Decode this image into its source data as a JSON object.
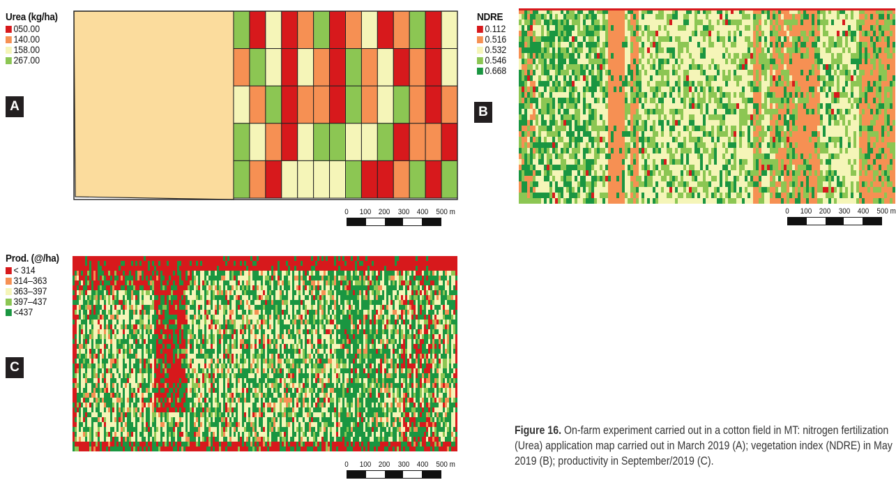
{
  "panels": {
    "a": {
      "tag": "A",
      "legend": {
        "title": "Urea (kg/ha)",
        "items": [
          {
            "label": "050.00",
            "color": "#d7191c"
          },
          {
            "label": "140.00",
            "color": "#f69053"
          },
          {
            "label": "158.00",
            "color": "#f5f5b8"
          },
          {
            "label": "267.00",
            "color": "#8cc653"
          }
        ]
      },
      "unfertilized_color": "#fbdc9d",
      "grid": {
        "rows": 5,
        "cols": 14,
        "cells": [
          [
            3,
            0,
            2,
            0,
            1,
            3,
            0,
            1,
            2,
            0,
            1,
            3,
            0,
            2
          ],
          [
            1,
            3,
            2,
            0,
            2,
            1,
            0,
            3,
            1,
            2,
            0,
            1,
            0,
            2
          ],
          [
            2,
            1,
            3,
            0,
            1,
            1,
            0,
            3,
            1,
            2,
            3,
            1,
            0,
            1
          ],
          [
            3,
            2,
            1,
            0,
            2,
            3,
            3,
            2,
            2,
            3,
            0,
            1,
            1,
            0
          ],
          [
            3,
            1,
            0,
            2,
            2,
            2,
            2,
            3,
            0,
            0,
            1,
            3,
            0,
            3
          ]
        ]
      },
      "scale": {
        "labels": [
          "0",
          "100",
          "200",
          "300",
          "400",
          "500 m"
        ]
      }
    },
    "b": {
      "tag": "B",
      "legend": {
        "title": "NDRE",
        "items": [
          {
            "label": "0.112",
            "color": "#d7191c"
          },
          {
            "label": "0.516",
            "color": "#f69053"
          },
          {
            "label": "0.532",
            "color": "#f5f5b8"
          },
          {
            "label": "0.546",
            "color": "#8cc653"
          },
          {
            "label": "0.668",
            "color": "#1a9641"
          }
        ]
      },
      "scale": {
        "labels": [
          "0",
          "100",
          "200",
          "300",
          "400",
          "500 m"
        ]
      }
    },
    "c": {
      "tag": "C",
      "legend": {
        "title": "Prod. (@/ha)",
        "items": [
          {
            "label": "< 314",
            "color": "#d7191c"
          },
          {
            "label": "314–363",
            "color": "#f69053"
          },
          {
            "label": "363–397",
            "color": "#f5f5b8"
          },
          {
            "label": "397–437",
            "color": "#8cc653"
          },
          {
            "label": "<437",
            "color": "#1a9641"
          }
        ]
      },
      "scale": {
        "labels": [
          "0",
          "100",
          "200",
          "300",
          "400",
          "500 m"
        ]
      }
    }
  },
  "caption": {
    "label": "Figure 16.",
    "text": " On-farm experiment carried out in a cotton field in MT: nitrogen fertilization (Urea) application map carried out in March 2019 (A); vegetation index (NDRE) in May 2019 (B); productivity in September/2019 (C)."
  }
}
